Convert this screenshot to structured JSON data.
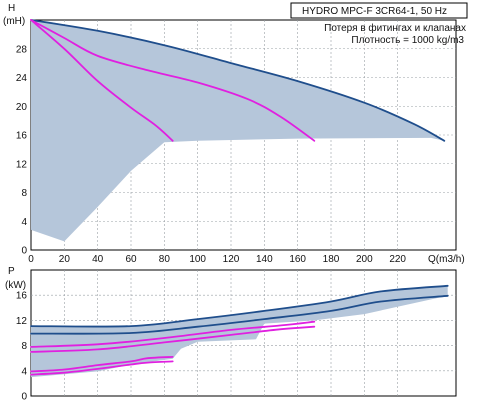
{
  "info": {
    "title": "HYDRO MPC-F 3CR64-1, 50 Hz",
    "line1": "Потеря в фитингах и клапанах",
    "line2": "Плотность = 1000 kg/m3"
  },
  "colors": {
    "envelope": "#b5c6da",
    "curve_dark": "#1f4e8c",
    "curve_magenta": "#e020e0",
    "grid": "#9aa0a6",
    "frame": "#000000"
  },
  "chart_data": [
    {
      "type": "area",
      "id": "head",
      "ylabel": "H",
      "yunit": "(mH)",
      "xlabel": "Q(m3/h)",
      "xlim": [
        0,
        255
      ],
      "ylim": [
        0,
        32
      ],
      "x_ticks": [
        0,
        20,
        40,
        60,
        80,
        100,
        120,
        140,
        160,
        180,
        200,
        220
      ],
      "x_tick_labels": [
        "0",
        "20",
        "40",
        "60",
        "80",
        "100",
        "120",
        "140",
        "160",
        "180",
        "200",
        "220"
      ],
      "y_ticks": [
        0,
        4,
        8,
        12,
        16,
        20,
        24,
        28
      ],
      "y_tick_labels": [
        "0",
        "4",
        "8",
        "12",
        "16",
        "20",
        "24",
        "28"
      ],
      "grid": true,
      "envelope": [
        [
          0,
          32
        ],
        [
          10,
          31.8
        ],
        [
          40,
          30.5
        ],
        [
          80,
          28.5
        ],
        [
          120,
          26.0
        ],
        [
          160,
          23.5
        ],
        [
          200,
          20.5
        ],
        [
          230,
          17.5
        ],
        [
          248,
          15.2
        ],
        [
          240,
          15.6
        ],
        [
          160,
          15.5
        ],
        [
          100,
          15.2
        ],
        [
          80,
          15.0
        ],
        [
          60,
          11.0
        ],
        [
          40,
          6.0
        ],
        [
          20,
          1.2
        ],
        [
          0,
          2.8
        ]
      ],
      "series": [
        {
          "name": "",
          "style": "dark",
          "points": [
            [
              0,
              32
            ],
            [
              40,
              30.5
            ],
            [
              80,
              28.5
            ],
            [
              120,
              26
            ],
            [
              160,
              23.5
            ],
            [
              200,
              20.5
            ],
            [
              230,
              17.5
            ],
            [
              248,
              15.2
            ]
          ]
        },
        {
          "name": "",
          "style": "magenta",
          "points": [
            [
              0,
              32
            ],
            [
              20,
              29.5
            ],
            [
              40,
              27
            ],
            [
              70,
              25
            ],
            [
              100,
              23.3
            ],
            [
              130,
              21
            ],
            [
              150,
              18.5
            ],
            [
              170,
              15.2
            ]
          ]
        },
        {
          "name": "",
          "style": "magenta",
          "points": [
            [
              0,
              32
            ],
            [
              20,
              28
            ],
            [
              40,
              23.5
            ],
            [
              60,
              19.8
            ],
            [
              75,
              17.3
            ],
            [
              85,
              15.2
            ]
          ]
        }
      ]
    },
    {
      "type": "area",
      "id": "power",
      "ylabel": "P",
      "yunit": "(kW)",
      "xlim": [
        0,
        255
      ],
      "ylim": [
        0,
        20
      ],
      "y_ticks": [
        0,
        4,
        8,
        12,
        16
      ],
      "y_tick_labels": [
        "0",
        "4",
        "8",
        "12",
        "16"
      ],
      "grid": true,
      "envelope": [
        [
          0,
          11.1
        ],
        [
          60,
          11.1
        ],
        [
          100,
          12.2
        ],
        [
          140,
          13.5
        ],
        [
          180,
          15.0
        ],
        [
          210,
          16.6
        ],
        [
          250,
          17.5
        ],
        [
          250,
          15.9
        ],
        [
          200,
          13.0
        ],
        [
          170,
          12.0
        ],
        [
          140,
          11.5
        ],
        [
          135,
          9.0
        ],
        [
          100,
          8.6
        ],
        [
          90,
          7.5
        ],
        [
          85,
          5.9
        ],
        [
          60,
          5.0
        ],
        [
          40,
          3.9
        ],
        [
          0,
          3.0
        ]
      ],
      "series": [
        {
          "name": "",
          "style": "dark",
          "points": [
            [
              0,
              11.1
            ],
            [
              60,
              11.1
            ],
            [
              100,
              12.2
            ],
            [
              140,
              13.5
            ],
            [
              180,
              15.0
            ],
            [
              210,
              16.6
            ],
            [
              250,
              17.5
            ]
          ]
        },
        {
          "name": "",
          "style": "dark",
          "points": [
            [
              0,
              9.9
            ],
            [
              60,
              10.0
            ],
            [
              100,
              11.0
            ],
            [
              140,
              12.2
            ],
            [
              180,
              13.5
            ],
            [
              210,
              15.0
            ],
            [
              250,
              15.9
            ]
          ]
        },
        {
          "name": "",
          "style": "magenta",
          "points": [
            [
              0,
              7.8
            ],
            [
              40,
              8.2
            ],
            [
              80,
              9.2
            ],
            [
              120,
              10.5
            ],
            [
              150,
              11.2
            ],
            [
              170,
              11.8
            ]
          ]
        },
        {
          "name": "",
          "style": "magenta",
          "points": [
            [
              0,
              7.0
            ],
            [
              40,
              7.4
            ],
            [
              80,
              8.5
            ],
            [
              120,
              9.7
            ],
            [
              150,
              10.6
            ],
            [
              170,
              11.0
            ]
          ]
        },
        {
          "name": "",
          "style": "magenta",
          "points": [
            [
              0,
              3.9
            ],
            [
              20,
              4.2
            ],
            [
              40,
              4.9
            ],
            [
              60,
              5.5
            ],
            [
              70,
              6.0
            ],
            [
              85,
              6.2
            ]
          ]
        },
        {
          "name": "",
          "style": "magenta",
          "points": [
            [
              0,
              3.4
            ],
            [
              20,
              3.7
            ],
            [
              40,
              4.3
            ],
            [
              60,
              5.0
            ],
            [
              70,
              5.3
            ],
            [
              85,
              5.5
            ]
          ]
        }
      ]
    }
  ]
}
